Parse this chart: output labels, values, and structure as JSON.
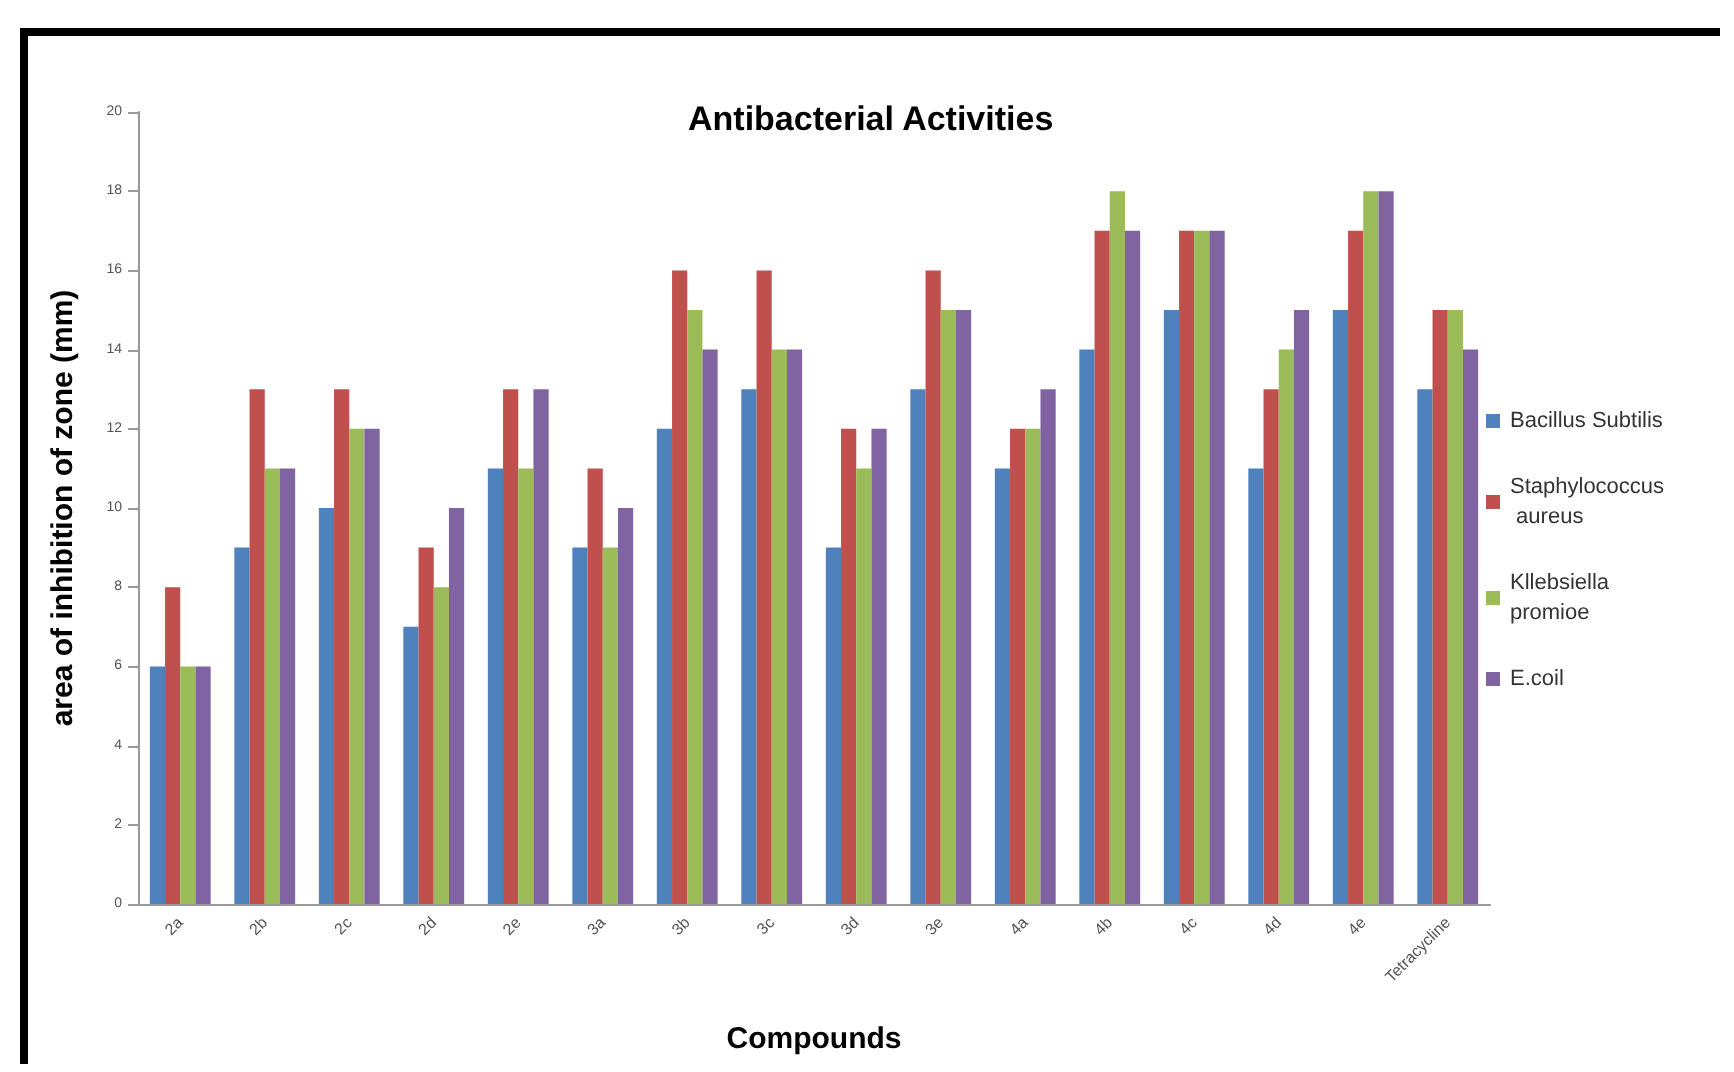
{
  "chart_data": {
    "type": "bar",
    "title": "Antibacterial Activities",
    "xlabel": "Compounds",
    "ylabel": "area of inhibition of zone (mm)",
    "categories": [
      "2a",
      "2b",
      "2c",
      "2d",
      "2e",
      "3a",
      "3b",
      "3c",
      "3d",
      "3e",
      "4a",
      "4b",
      "4c",
      "4d",
      "4e",
      "Tetracycline"
    ],
    "series": [
      {
        "name": "Bacillus Subtilis",
        "color": "#4f81bd",
        "values": [
          6,
          9,
          10,
          7,
          11,
          9,
          12,
          13,
          9,
          13,
          11,
          14,
          15,
          11,
          15,
          13
        ]
      },
      {
        "name": "Staphylococcus aureus",
        "color": "#c0504d",
        "values": [
          8,
          13,
          13,
          9,
          13,
          11,
          16,
          16,
          12,
          16,
          12,
          17,
          17,
          13,
          17,
          15
        ]
      },
      {
        "name": "Kllebsiella promioe",
        "color": "#9bbb59",
        "values": [
          6,
          11,
          12,
          8,
          11,
          9,
          15,
          14,
          11,
          15,
          12,
          18,
          17,
          14,
          18,
          15
        ]
      },
      {
        "name": "E.coil",
        "color": "#8064a2",
        "values": [
          6,
          11,
          12,
          10,
          13,
          10,
          14,
          14,
          12,
          15,
          13,
          17,
          17,
          15,
          18,
          14
        ]
      }
    ],
    "ylim": [
      0,
      20
    ],
    "yticks": [
      0,
      2,
      4,
      6,
      8,
      10,
      12,
      14,
      16,
      18,
      20
    ],
    "grid": false,
    "legend": "right"
  }
}
